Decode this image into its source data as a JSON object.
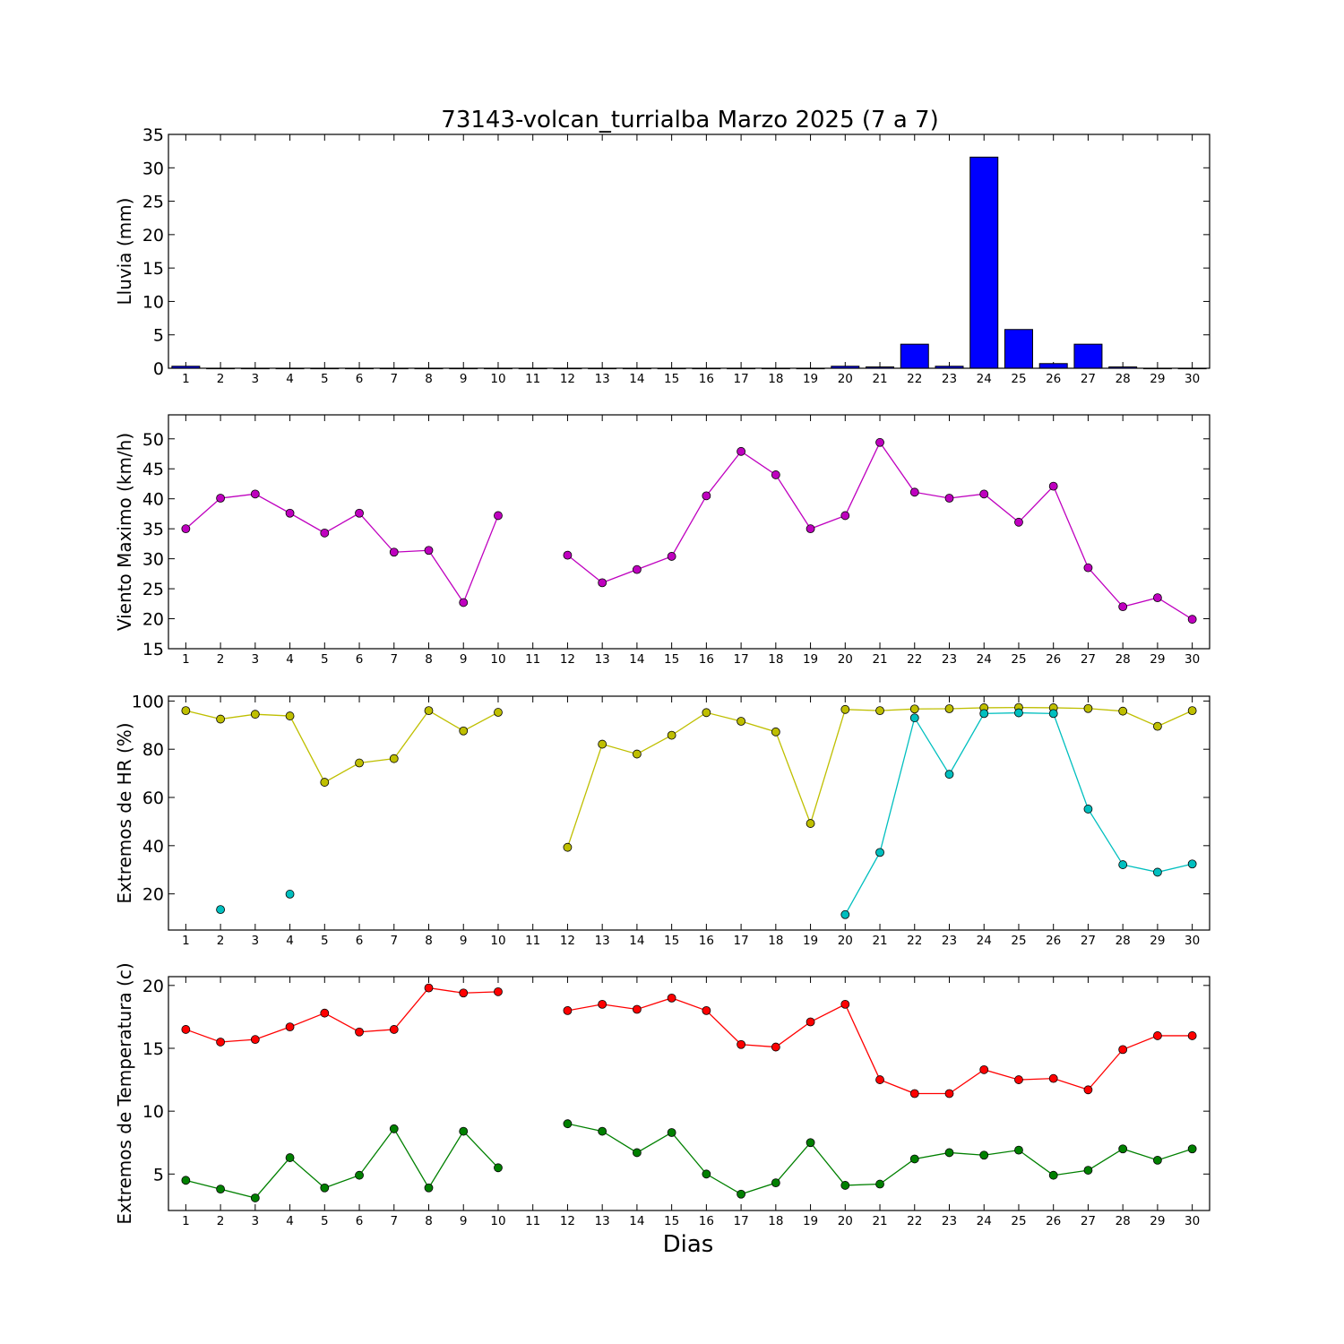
{
  "figure": {
    "title": "73143-volcan_turrialba Marzo 2025  (7 a 7)",
    "xlabel": "Dias"
  },
  "chart_data": [
    {
      "type": "bar",
      "ylabel": "Lluvia (mm)",
      "x": [
        1,
        2,
        3,
        4,
        5,
        6,
        7,
        8,
        9,
        10,
        11,
        12,
        13,
        14,
        15,
        16,
        17,
        18,
        19,
        20,
        21,
        22,
        23,
        24,
        25,
        26,
        27,
        28,
        29,
        30
      ],
      "xlim": [
        0.5,
        30.5
      ],
      "ylim": [
        0,
        35
      ],
      "yticks": [
        0,
        5,
        10,
        15,
        20,
        25,
        30,
        35
      ],
      "grid": false,
      "series": [
        {
          "color": "#0000ff",
          "values": [
            0.3,
            0,
            0,
            0,
            0,
            0,
            0,
            0,
            0,
            0,
            0,
            0,
            0,
            0,
            0,
            0,
            0,
            0,
            0,
            0.3,
            0.2,
            3.6,
            0.3,
            31.6,
            5.8,
            0.7,
            3.6,
            0.2,
            0,
            0
          ]
        }
      ]
    },
    {
      "type": "line",
      "ylabel": "Viento Maximo (km/h)",
      "x": [
        1,
        2,
        3,
        4,
        5,
        6,
        7,
        8,
        9,
        10,
        11,
        12,
        13,
        14,
        15,
        16,
        17,
        18,
        19,
        20,
        21,
        22,
        23,
        24,
        25,
        26,
        27,
        28,
        29,
        30
      ],
      "xlim": [
        0.5,
        30.5
      ],
      "ylim": [
        15,
        54
      ],
      "yticks": [
        15,
        20,
        25,
        30,
        35,
        40,
        45,
        50
      ],
      "grid": false,
      "series": [
        {
          "color": "#bf00bf",
          "values": [
            35.0,
            40.1,
            40.8,
            37.6,
            34.3,
            37.6,
            31.1,
            31.4,
            22.7,
            37.2,
            null,
            30.6,
            26.0,
            28.2,
            30.4,
            40.5,
            47.9,
            44.0,
            35.0,
            37.2,
            49.4,
            41.1,
            40.1,
            40.8,
            36.1,
            42.1,
            28.5,
            22.0,
            23.5,
            19.9
          ]
        }
      ]
    },
    {
      "type": "line",
      "ylabel": "Extremos de HR (%)",
      "x": [
        1,
        2,
        3,
        4,
        5,
        6,
        7,
        8,
        9,
        10,
        11,
        12,
        13,
        14,
        15,
        16,
        17,
        18,
        19,
        20,
        21,
        22,
        23,
        24,
        25,
        26,
        27,
        28,
        29,
        30
      ],
      "xlim": [
        0.5,
        30.5
      ],
      "ylim": [
        5,
        102
      ],
      "yticks": [
        20,
        40,
        60,
        80,
        100
      ],
      "grid": false,
      "series": [
        {
          "color": "#bfbf00",
          "values": [
            96,
            92.5,
            94.5,
            93.8,
            66.3,
            74.3,
            76.1,
            96,
            87.6,
            95.3,
            null,
            39.3,
            82.1,
            78.0,
            85.8,
            95.2,
            91.6,
            87.2,
            49.2,
            96.5,
            96,
            96.7,
            96.8,
            97.2,
            97.3,
            97.2,
            96.9,
            95.8,
            89.5,
            96
          ]
        },
        {
          "color": "#00bfbf",
          "values": [
            null,
            13.5,
            null,
            19.9,
            null,
            null,
            null,
            null,
            null,
            null,
            null,
            null,
            null,
            null,
            null,
            null,
            null,
            null,
            null,
            11.4,
            37.2,
            93.0,
            69.6,
            94.8,
            95.1,
            94.8,
            55.2,
            32.1,
            29.0,
            32.4
          ]
        }
      ]
    },
    {
      "type": "line",
      "ylabel": "Extremos de Temperatura (c)",
      "x": [
        1,
        2,
        3,
        4,
        5,
        6,
        7,
        8,
        9,
        10,
        11,
        12,
        13,
        14,
        15,
        16,
        17,
        18,
        19,
        20,
        21,
        22,
        23,
        24,
        25,
        26,
        27,
        28,
        29,
        30
      ],
      "xlim": [
        0.5,
        30.5
      ],
      "ylim": [
        2.1,
        20.7
      ],
      "yticks": [
        5,
        10,
        15,
        20
      ],
      "grid": false,
      "series": [
        {
          "color": "#ff0000",
          "values": [
            16.5,
            15.5,
            15.7,
            16.7,
            17.8,
            16.3,
            16.5,
            19.8,
            19.4,
            19.5,
            null,
            18.0,
            18.5,
            18.1,
            19.0,
            18.0,
            15.3,
            15.1,
            17.1,
            18.5,
            12.5,
            11.4,
            11.4,
            13.3,
            12.5,
            12.6,
            11.7,
            14.9,
            16.0,
            16.0
          ]
        },
        {
          "color": "#008000",
          "values": [
            4.5,
            3.8,
            3.1,
            6.3,
            3.9,
            4.9,
            8.6,
            3.9,
            8.4,
            5.5,
            null,
            9.0,
            8.4,
            6.7,
            8.3,
            5.0,
            3.4,
            4.3,
            7.5,
            4.1,
            4.2,
            6.2,
            6.7,
            6.5,
            6.9,
            4.9,
            5.3,
            7.0,
            6.1,
            7.0
          ]
        }
      ]
    }
  ]
}
